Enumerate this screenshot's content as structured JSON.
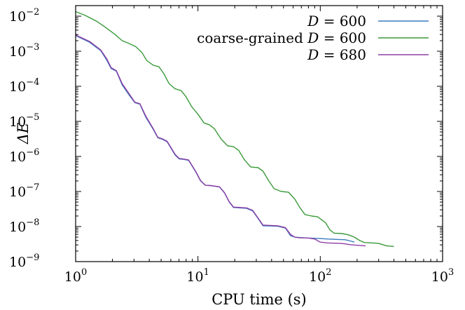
{
  "chart_data": {
    "type": "line",
    "xlabel": "CPU time (s)",
    "ylabel": "ΔE",
    "xscale": "log",
    "yscale": "log",
    "xlim": [
      1,
      1000
    ],
    "ylim": [
      1e-09,
      0.02
    ],
    "x_tick_labels": [
      {
        "base": "10",
        "exp": "0",
        "value": 1
      },
      {
        "base": "10",
        "exp": "1",
        "value": 10
      },
      {
        "base": "10",
        "exp": "2",
        "value": 100
      },
      {
        "base": "10",
        "exp": "3",
        "value": 1000
      }
    ],
    "y_tick_labels": [
      {
        "base": "10",
        "exp": "−2",
        "value": 0.01
      },
      {
        "base": "10",
        "exp": "−3",
        "value": 0.001
      },
      {
        "base": "10",
        "exp": "−4",
        "value": 0.0001
      },
      {
        "base": "10",
        "exp": "−5",
        "value": 1e-05
      },
      {
        "base": "10",
        "exp": "−6",
        "value": 1e-06
      },
      {
        "base": "10",
        "exp": "−7",
        "value": 1e-07
      },
      {
        "base": "10",
        "exp": "−8",
        "value": 1e-08
      },
      {
        "base": "10",
        "exp": "−9",
        "value": 1e-09
      }
    ],
    "legend_position": "top-right",
    "grid": false,
    "series": [
      {
        "name": "D = 600",
        "legend_prefix": "",
        "legend_var": "D",
        "legend_value": " = 600",
        "color": "#3a7bbf",
        "x": [
          1.0,
          1.3,
          1.6,
          1.8,
          1.95,
          2.15,
          2.4,
          2.75,
          3.05,
          3.35,
          3.75,
          4.3,
          4.7,
          5.1,
          5.6,
          6.5,
          7.0,
          7.7,
          8.4,
          9.6,
          10.5,
          11.5,
          12.6,
          15.0,
          16.5,
          18.0,
          19.5,
          25.0,
          28.0,
          31.0,
          34.0,
          45.0,
          52.0,
          57.0,
          62.0,
          66.0,
          80.0,
          95.0,
          105.0,
          115.0,
          160.0,
          175.0,
          190.0
        ],
        "y": [
          0.0028,
          0.0018,
          0.00105,
          0.00055,
          0.00032,
          0.00027,
          0.00011,
          5.5e-05,
          3.4e-05,
          3.1e-05,
          1.3e-05,
          6e-06,
          3.4e-06,
          3.1e-06,
          2.6e-06,
          1.1e-06,
          8.5e-07,
          8.2e-07,
          7.7e-07,
          3.6e-07,
          2e-07,
          1.5e-07,
          1.48e-07,
          1.35e-07,
          9e-08,
          5e-08,
          3.5e-08,
          3.3e-08,
          2.8e-08,
          1.7e-08,
          1.05e-08,
          1.02e-08,
          9e-09,
          5.5e-09,
          5e-09,
          4.9e-09,
          4.7e-09,
          4.6e-09,
          4.5e-09,
          4.4e-09,
          4.2e-09,
          3.9e-09,
          3.6e-09
        ]
      },
      {
        "name": "coarse-grained D = 600",
        "legend_prefix": "coarse-grained ",
        "legend_var": "D",
        "legend_value": " = 600",
        "color": "#3a9a3a",
        "x": [
          1.0,
          1.2,
          1.5,
          1.8,
          2.1,
          2.4,
          2.7,
          3.1,
          3.5,
          3.8,
          4.3,
          4.8,
          5.3,
          5.8,
          6.5,
          7.3,
          8.0,
          8.9,
          10.0,
          11.2,
          12.4,
          13.6,
          15.5,
          17.5,
          19.5,
          21.5,
          24.0,
          27.0,
          31.0,
          34.0,
          38.0,
          42.0,
          48.0,
          55.0,
          62.0,
          68.0,
          75.0,
          85.0,
          95.0,
          110.0,
          120.0,
          130.0,
          150.0,
          170.0,
          190.0,
          210.0,
          230.0,
          270.0,
          300.0,
          350.0,
          400.0
        ],
        "y": [
          0.0135,
          0.0105,
          0.007,
          0.0045,
          0.003,
          0.002,
          0.0017,
          0.00135,
          0.0009,
          0.00055,
          0.0004,
          0.00036,
          0.00022,
          0.00012,
          8.5e-05,
          7.5e-05,
          5e-05,
          2.6e-05,
          1.6e-05,
          9e-06,
          8e-06,
          6.2e-06,
          3.1e-06,
          2e-06,
          1.9e-06,
          1.5e-06,
          8e-07,
          5e-07,
          4.8e-07,
          3.8e-07,
          2e-07,
          1.2e-07,
          1e-07,
          9.5e-08,
          6e-08,
          3.5e-08,
          2.2e-08,
          2e-08,
          1.9e-08,
          1.3e-08,
          8e-09,
          6.5e-09,
          6.3e-09,
          5.8e-09,
          5e-09,
          4e-09,
          3.5e-09,
          3.4e-09,
          3.3e-09,
          2.8e-09,
          2.7e-09
        ]
      },
      {
        "name": "D = 680",
        "legend_prefix": "",
        "legend_var": "D",
        "legend_value": " = 680",
        "color": "#8e3fa6",
        "x": [
          1.0,
          1.3,
          1.6,
          1.8,
          1.95,
          2.15,
          2.4,
          2.75,
          3.05,
          3.35,
          3.75,
          4.3,
          4.7,
          5.1,
          5.6,
          6.5,
          7.0,
          7.7,
          8.4,
          9.6,
          10.5,
          11.5,
          12.6,
          15.0,
          16.5,
          18.0,
          19.5,
          25.0,
          28.0,
          31.0,
          34.0,
          45.0,
          52.0,
          57.0,
          62.0,
          66.0,
          80.0,
          90.0,
          100.0,
          115.0,
          150.0,
          180.0,
          210.0,
          235.0
        ],
        "y": [
          0.0029,
          0.0019,
          0.0011,
          0.0006,
          0.00034,
          0.00028,
          0.00012,
          6e-05,
          3.5e-05,
          3.2e-05,
          1.4e-05,
          6.3e-06,
          3.5e-06,
          3.2e-06,
          2.7e-06,
          1.15e-06,
          8.8e-07,
          8.4e-07,
          7.9e-07,
          3.7e-07,
          2.05e-07,
          1.5e-07,
          1.48e-07,
          1.36e-07,
          9.2e-08,
          5.1e-08,
          3.6e-08,
          3.4e-08,
          2.9e-08,
          1.75e-08,
          1.1e-08,
          1.05e-08,
          9.3e-09,
          6e-09,
          5e-09,
          4.8e-09,
          4.7e-09,
          4.4e-09,
          3.6e-09,
          3.4e-09,
          3.3e-09,
          3e-09,
          2.9e-09,
          2.8e-09
        ]
      }
    ]
  }
}
